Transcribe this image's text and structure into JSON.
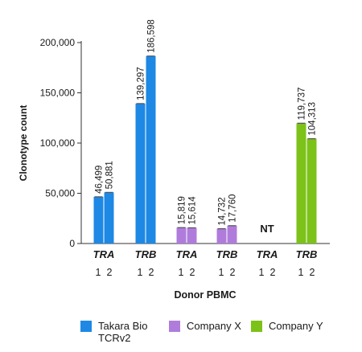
{
  "chart_data": {
    "type": "bar",
    "ylabel": "Clonotype count",
    "xlabel": "Donor PBMC",
    "ylim": [
      0,
      200000
    ],
    "yticks": [
      "0",
      "50,000",
      "100,000",
      "150,000",
      "200,000"
    ],
    "yticks_values": [
      0,
      50000,
      100000,
      150000,
      200000
    ],
    "groups": [
      {
        "chain": "TRA",
        "vendor": "Takara Bio TCRv2",
        "color": "#1e88e5",
        "donors": [
          "1",
          "2"
        ],
        "values": [
          46499,
          50881
        ],
        "labels": [
          "46,499",
          "50,881"
        ],
        "note": ""
      },
      {
        "chain": "TRB",
        "vendor": "Takara Bio TCRv2",
        "color": "#1e88e5",
        "donors": [
          "1",
          "2"
        ],
        "values": [
          139297,
          186598
        ],
        "labels": [
          "139,297",
          "186,598"
        ],
        "note": ""
      },
      {
        "chain": "TRA",
        "vendor": "Company X",
        "color": "#b07cdc",
        "donors": [
          "1",
          "2"
        ],
        "values": [
          15819,
          15614
        ],
        "labels": [
          "15,819",
          "15,614"
        ],
        "note": ""
      },
      {
        "chain": "TRB",
        "vendor": "Company X",
        "color": "#b07cdc",
        "donors": [
          "1",
          "2"
        ],
        "values": [
          14732,
          17760
        ],
        "labels": [
          "14,732",
          "17,760"
        ],
        "note": ""
      },
      {
        "chain": "TRA",
        "vendor": "Company Y",
        "color": "#7cc219",
        "donors": [
          "1",
          "2"
        ],
        "values": [],
        "labels": [],
        "note": "NT"
      },
      {
        "chain": "TRB",
        "vendor": "Company Y",
        "color": "#7cc219",
        "donors": [
          "1",
          "2"
        ],
        "values": [
          119737,
          104313
        ],
        "labels": [
          "119,737",
          "104,313"
        ],
        "note": ""
      }
    ],
    "legend": [
      {
        "label": "Takara Bio TCRv2",
        "color": "#1e88e5"
      },
      {
        "label": "Company X",
        "color": "#b07cdc"
      },
      {
        "label": "Company Y",
        "color": "#7cc219"
      }
    ]
  }
}
